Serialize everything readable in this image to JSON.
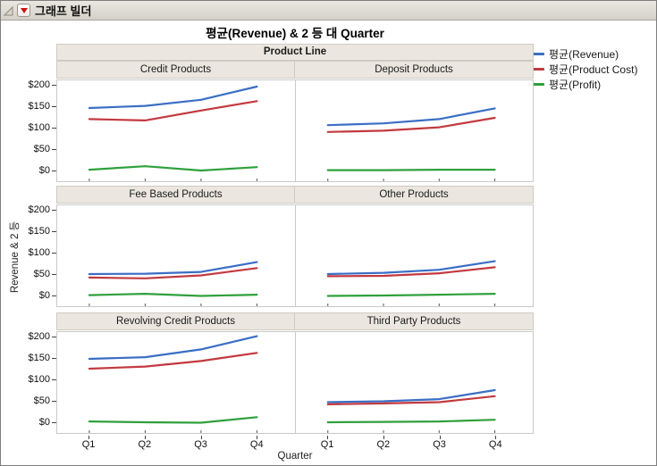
{
  "window": {
    "title": "그래프 빌더"
  },
  "chart": {
    "title": "평균(Revenue) & 2 등 대 Quarter",
    "group_header": "Product Line",
    "y_axis_label": "Revenue & 2 등",
    "x_axis_label": "Quarter"
  },
  "legend": {
    "items": [
      {
        "label": "평균(Revenue)",
        "color": "#3a6ec5"
      },
      {
        "label": "평균(Product Cost)",
        "color": "#c2393f"
      },
      {
        "label": "평균(Profit)",
        "color": "#2fa03c"
      }
    ]
  },
  "colors": {
    "series_blue": "#3a6ec5",
    "series_red": "#c2393f",
    "series_green": "#2fa03c",
    "header_band_bg": "#ebe7e0",
    "titlebar_bg": "#dcd8d0",
    "red_triangle": "#cc1111"
  },
  "chart_data": {
    "type": "line",
    "x": [
      "Q1",
      "Q2",
      "Q3",
      "Q4"
    ],
    "xlabel": "Quarter",
    "ylabel": "Revenue & 2 등",
    "ylim": [
      0,
      200
    ],
    "y_ticks": [
      "$200",
      "$150",
      "$100",
      "$50",
      "$0"
    ],
    "y_tick_values": [
      200,
      150,
      100,
      50,
      0
    ],
    "grid": "off",
    "legend_position": "top-right",
    "facet": {
      "rows": 3,
      "cols": 2,
      "by": "Product Line"
    },
    "panels": [
      {
        "name": "Credit Products",
        "series": [
          {
            "name": "평균(Revenue)",
            "color": "#3a6ec5",
            "values": [
              148,
              153,
              167,
              198
            ]
          },
          {
            "name": "평균(Product Cost)",
            "color": "#c2393f",
            "values": [
              122,
              119,
              142,
              164
            ]
          },
          {
            "name": "평균(Profit)",
            "color": "#2fa03c",
            "values": [
              4,
              12,
              2,
              10
            ]
          }
        ]
      },
      {
        "name": "Deposit Products",
        "series": [
          {
            "name": "평균(Revenue)",
            "color": "#3a6ec5",
            "values": [
              108,
              112,
              122,
              147
            ]
          },
          {
            "name": "평균(Product Cost)",
            "color": "#c2393f",
            "values": [
              92,
              95,
              103,
              125
            ]
          },
          {
            "name": "평균(Profit)",
            "color": "#2fa03c",
            "values": [
              3,
              3,
              4,
              4
            ]
          }
        ]
      },
      {
        "name": "Fee Based Products",
        "series": [
          {
            "name": "평균(Revenue)",
            "color": "#3a6ec5",
            "values": [
              52,
              53,
              57,
              80
            ]
          },
          {
            "name": "평균(Product Cost)",
            "color": "#c2393f",
            "values": [
              44,
              42,
              49,
              66
            ]
          },
          {
            "name": "평균(Profit)",
            "color": "#2fa03c",
            "values": [
              3,
              6,
              1,
              4
            ]
          }
        ]
      },
      {
        "name": "Other Products",
        "series": [
          {
            "name": "평균(Revenue)",
            "color": "#3a6ec5",
            "values": [
              52,
              55,
              62,
              82
            ]
          },
          {
            "name": "평균(Product Cost)",
            "color": "#c2393f",
            "values": [
              47,
              48,
              54,
              68
            ]
          },
          {
            "name": "평균(Profit)",
            "color": "#2fa03c",
            "values": [
              1,
              2,
              4,
              6
            ]
          }
        ]
      },
      {
        "name": "Revolving Credit Products",
        "series": [
          {
            "name": "평균(Revenue)",
            "color": "#3a6ec5",
            "values": [
              150,
              154,
              172,
              203
            ]
          },
          {
            "name": "평균(Product Cost)",
            "color": "#c2393f",
            "values": [
              127,
              132,
              145,
              164
            ]
          },
          {
            "name": "평균(Profit)",
            "color": "#2fa03c",
            "values": [
              4,
              2,
              1,
              14
            ]
          }
        ]
      },
      {
        "name": "Third Party Products",
        "series": [
          {
            "name": "평균(Revenue)",
            "color": "#3a6ec5",
            "values": [
              49,
              51,
              56,
              77
            ]
          },
          {
            "name": "평균(Product Cost)",
            "color": "#c2393f",
            "values": [
              44,
              46,
              49,
              63
            ]
          },
          {
            "name": "평균(Profit)",
            "color": "#2fa03c",
            "values": [
              2,
              3,
              4,
              8
            ]
          }
        ]
      }
    ]
  }
}
